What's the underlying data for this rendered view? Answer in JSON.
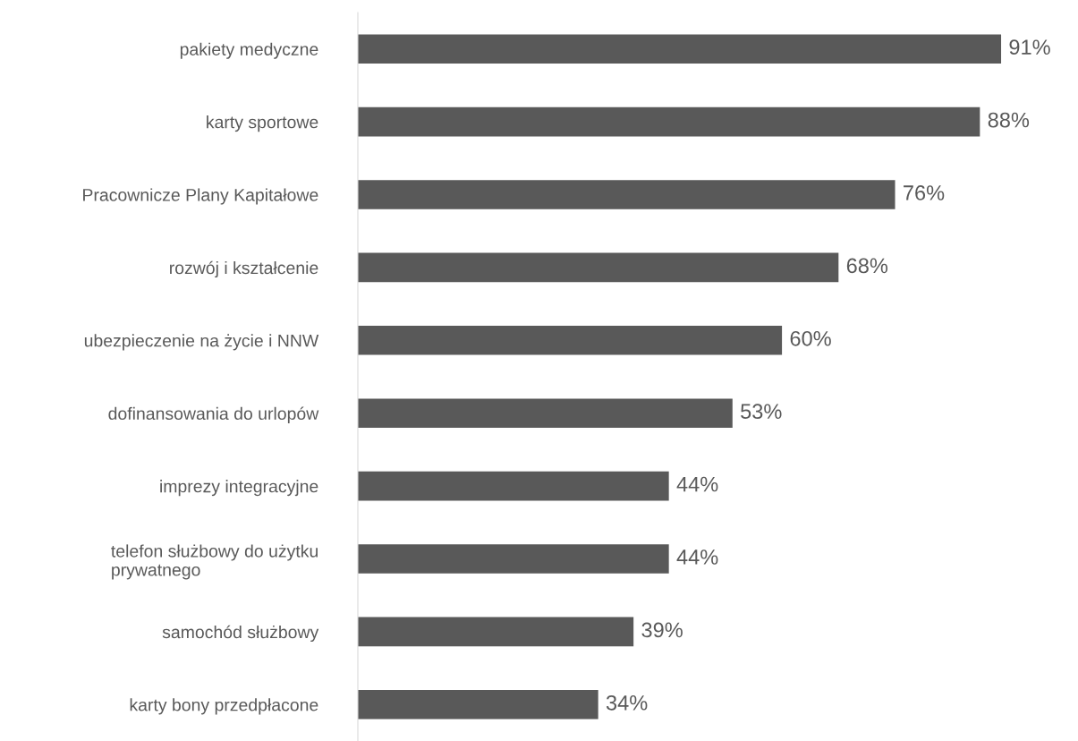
{
  "chart_data": {
    "type": "bar",
    "orientation": "horizontal",
    "categories": [
      "pakiety medyczne",
      "karty sportowe",
      "Pracownicze Plany Kapitałowe",
      "rozwój i kształcenie",
      "ubezpieczenie na życie i NNW",
      "dofinansowania do urlopów",
      "imprezy integracyjne",
      "telefon służbowy do użytku\nprywatnego",
      "samochód służbowy",
      "karty bony przedpłacone"
    ],
    "values": [
      91,
      88,
      76,
      68,
      60,
      53,
      44,
      44,
      39,
      34
    ],
    "value_labels": [
      "91%",
      "88%",
      "76%",
      "68%",
      "60%",
      "53%",
      "44%",
      "44%",
      "39%",
      "34%"
    ],
    "color": "#595959",
    "tick_labels": "y",
    "grid": false,
    "legend": false
  }
}
